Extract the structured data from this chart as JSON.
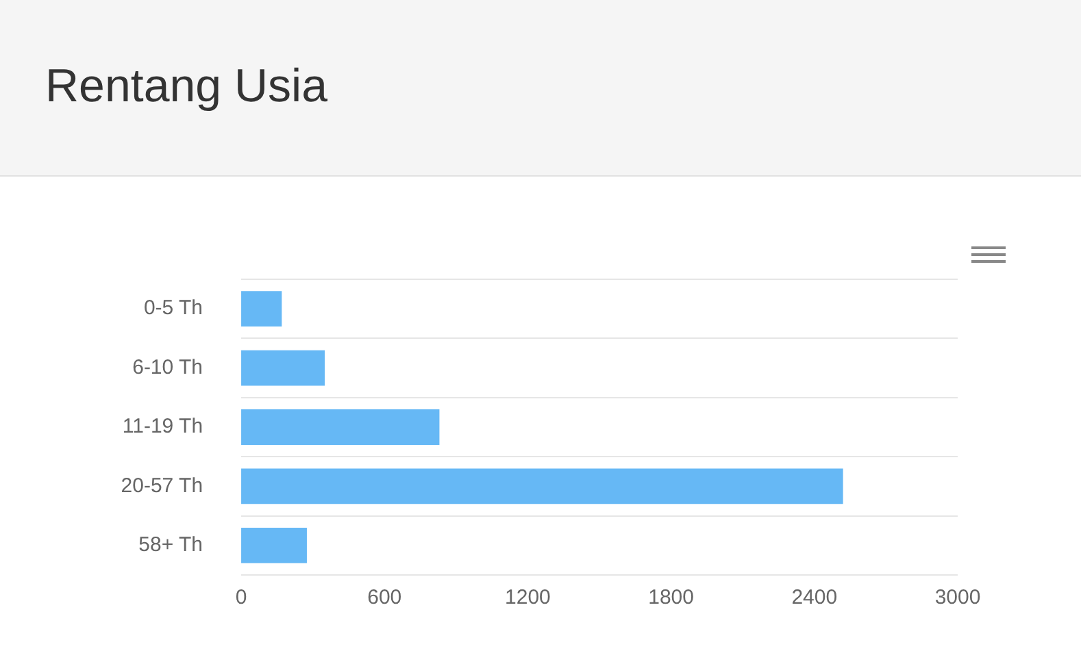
{
  "chart_data": {
    "type": "bar",
    "title": "Rentang Usia",
    "orientation": "horizontal",
    "categories": [
      "0-5 Th",
      "6-10 Th",
      "11-19 Th",
      "20-57 Th",
      "58+ Th"
    ],
    "values": [
      170,
      350,
      830,
      2520,
      275
    ],
    "color": "#66b8f5",
    "xlim": [
      0,
      3000
    ],
    "xticks": [
      0,
      600,
      1200,
      1800,
      2400,
      3000
    ],
    "grid": "y",
    "legend": false
  }
}
